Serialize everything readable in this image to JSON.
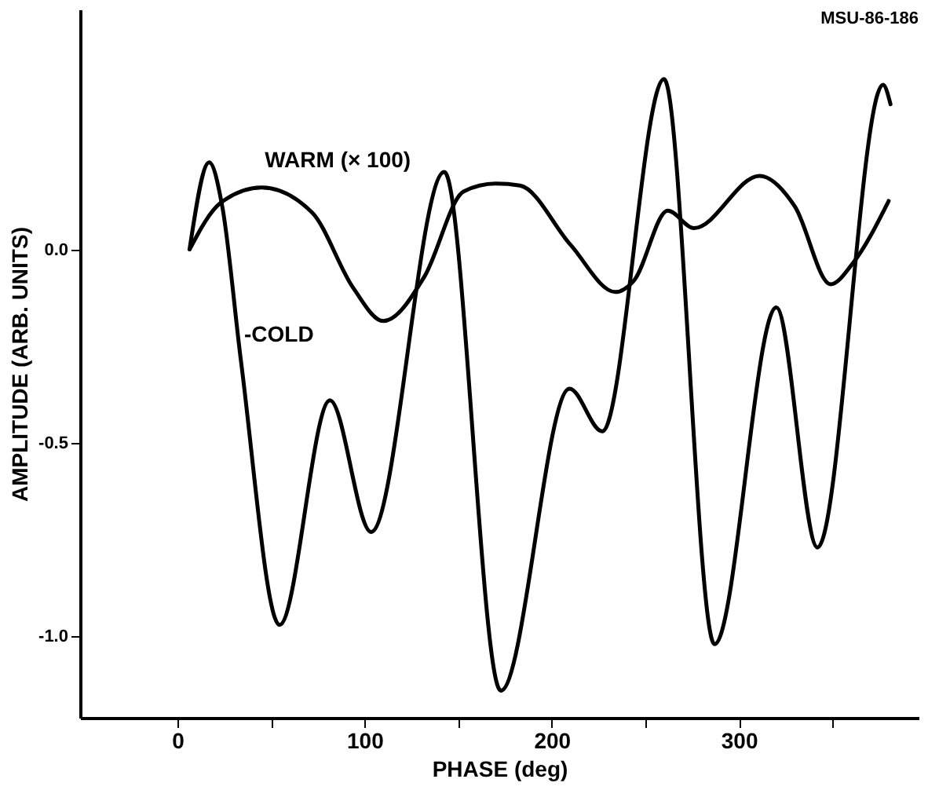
{
  "chart_data": {
    "type": "line",
    "xlabel": "PHASE (deg)",
    "ylabel": "AMPLITUDE (ARB. UNITS)",
    "xlim": [
      -52,
      396
    ],
    "ylim": [
      -1.21,
      0.62
    ],
    "xticks": [
      0,
      {
        "value": 50,
        "label": null
      },
      100,
      {
        "value": 150,
        "label": null
      },
      200,
      {
        "value": 250,
        "label": null
      },
      300,
      {
        "value": 350,
        "label": null
      }
    ],
    "yticks": [
      {
        "value": 0,
        "label": "0.0"
      },
      {
        "value": -0.5,
        "label": "-0.5"
      },
      {
        "value": -1,
        "label": "-1.0"
      }
    ],
    "grid": false,
    "marker": "none",
    "line_style": "solid",
    "series": [
      {
        "color": "#000000",
        "x": [
          6.5,
          17,
          24,
          34,
          54.6,
          81.5,
          103.5,
          142.6,
          172.8,
          209.5,
          227,
          260,
          287,
          320,
          342,
          377,
          381
        ],
        "values": [
          0,
          0.225,
          0.11,
          -0.29,
          -0.97,
          -0.39,
          -0.73,
          0.2,
          -1.14,
          -0.36,
          -0.47,
          0.44,
          -1.02,
          -0.15,
          -0.77,
          0.425,
          0.375
        ]
      },
      {
        "color": "#000000",
        "x": [
          6.5,
          23,
          45,
          72,
          94,
          110,
          132,
          153,
          170,
          183,
          210,
          234,
          244,
          262,
          276,
          311,
          330,
          349,
          361,
          380
        ],
        "values": [
          0,
          0.12,
          0.16,
          0.095,
          -0.1,
          -0.185,
          -0.07,
          0.15,
          0.17,
          0.165,
          0.012,
          -0.11,
          -0.08,
          0.1,
          0.055,
          0.19,
          0.11,
          -0.09,
          -0.035,
          0.125
        ]
      }
    ],
    "annotations": [
      {
        "text": "WARM (× 100)",
        "x": 45,
        "y": 0.16
      },
      {
        "text": "-COLD",
        "x": 34,
        "y": -0.29
      },
      "MSU-86-186"
    ]
  }
}
